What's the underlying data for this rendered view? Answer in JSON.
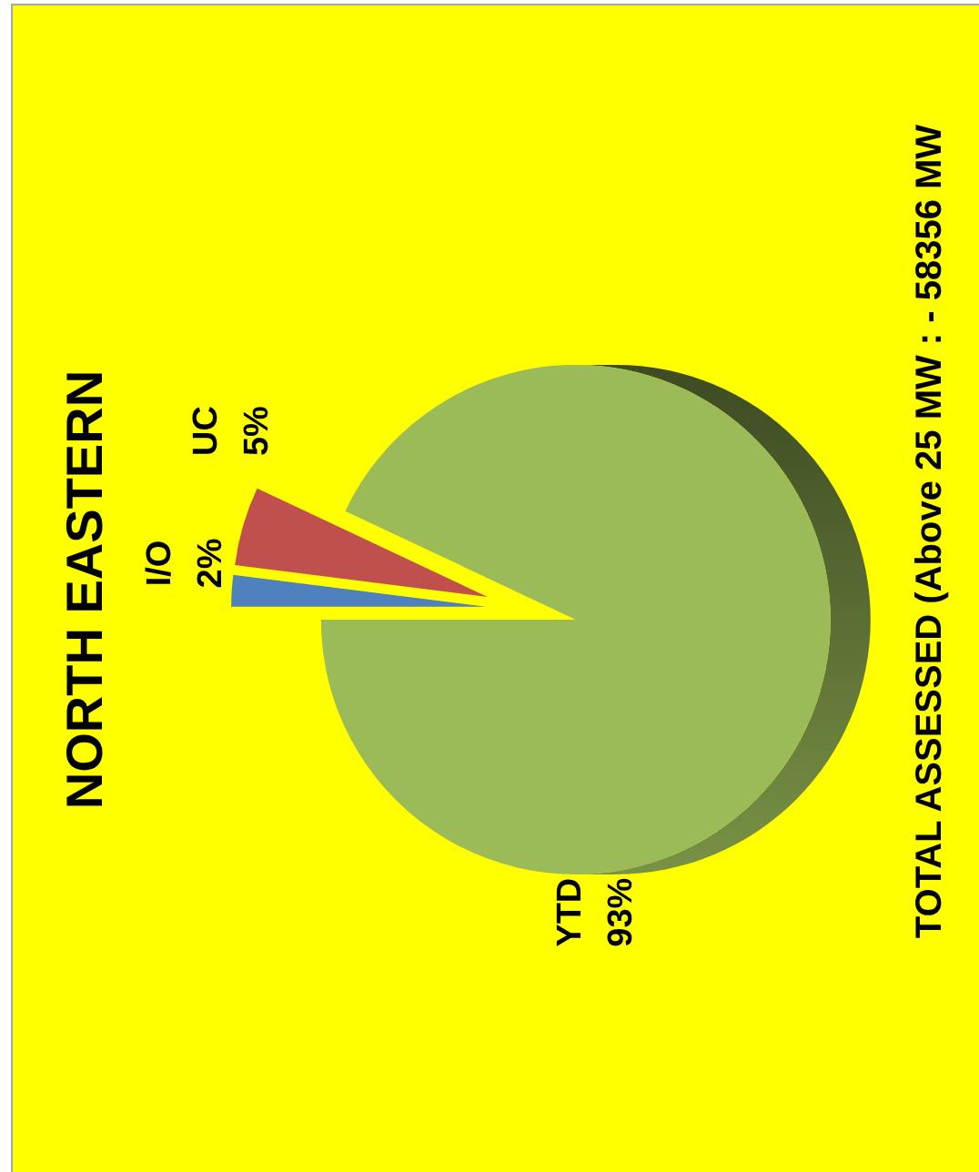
{
  "chart_data": {
    "type": "pie",
    "title": "NORTH EASTERN",
    "categories": [
      "I/O",
      "UC",
      "YTD"
    ],
    "values": [
      2,
      5,
      93
    ],
    "colors": [
      "#4f81bd",
      "#c0504d",
      "#9bbb59"
    ],
    "value_labels": [
      "2%",
      "5%",
      "93%"
    ],
    "annotations": [
      "TOTAL ASSESSED (Above 25 MW : - 58356 MW"
    ]
  }
}
